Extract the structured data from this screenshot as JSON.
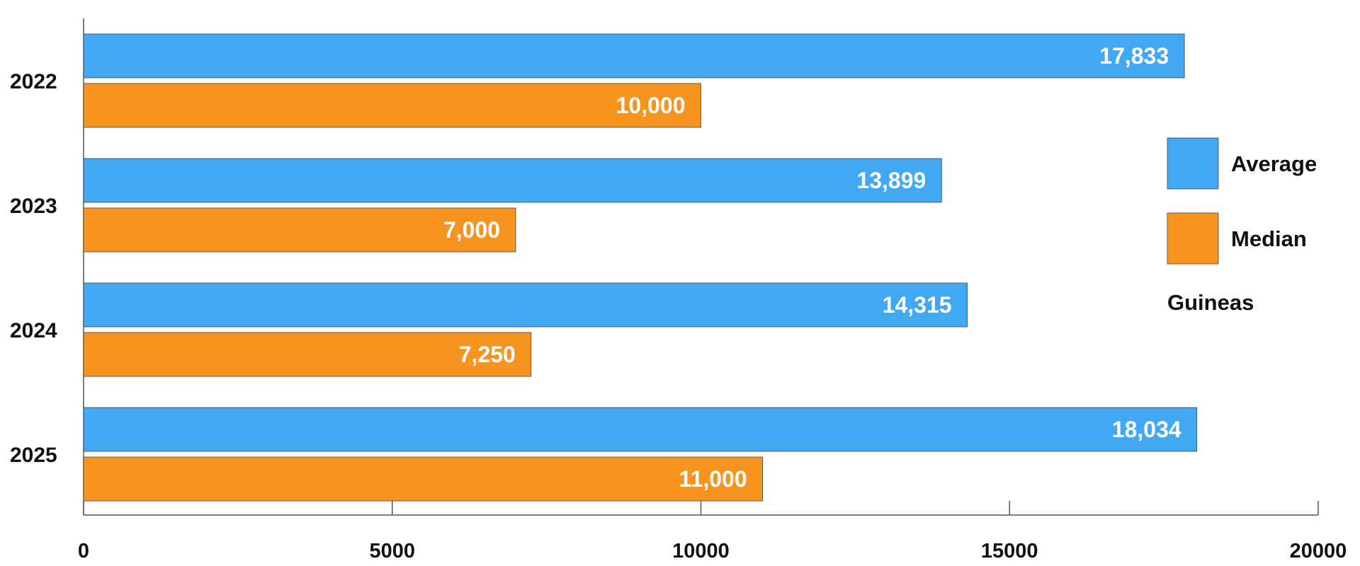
{
  "chart_data": {
    "type": "bar",
    "orientation": "horizontal",
    "categories": [
      "2022",
      "2023",
      "2024",
      "2025"
    ],
    "series": [
      {
        "name": "Average",
        "color": "#42a8f4",
        "values": [
          17833,
          13899,
          14315,
          18034
        ],
        "labels": [
          "17,833",
          "13,899",
          "14,315",
          "18,034"
        ]
      },
      {
        "name": "Median",
        "color": "#f79420",
        "values": [
          10000,
          7000,
          7250,
          11000
        ],
        "labels": [
          "10,000",
          "7,000",
          "7,250",
          "11,000"
        ]
      }
    ],
    "xlim": [
      0,
      20000
    ],
    "xticks": [
      0,
      5000,
      10000,
      15000,
      20000
    ],
    "xtick_labels": [
      "0",
      "5000",
      "10000",
      "15000",
      "20000"
    ],
    "unit_label": "Guineas",
    "legend_position": "right",
    "grid": false
  }
}
